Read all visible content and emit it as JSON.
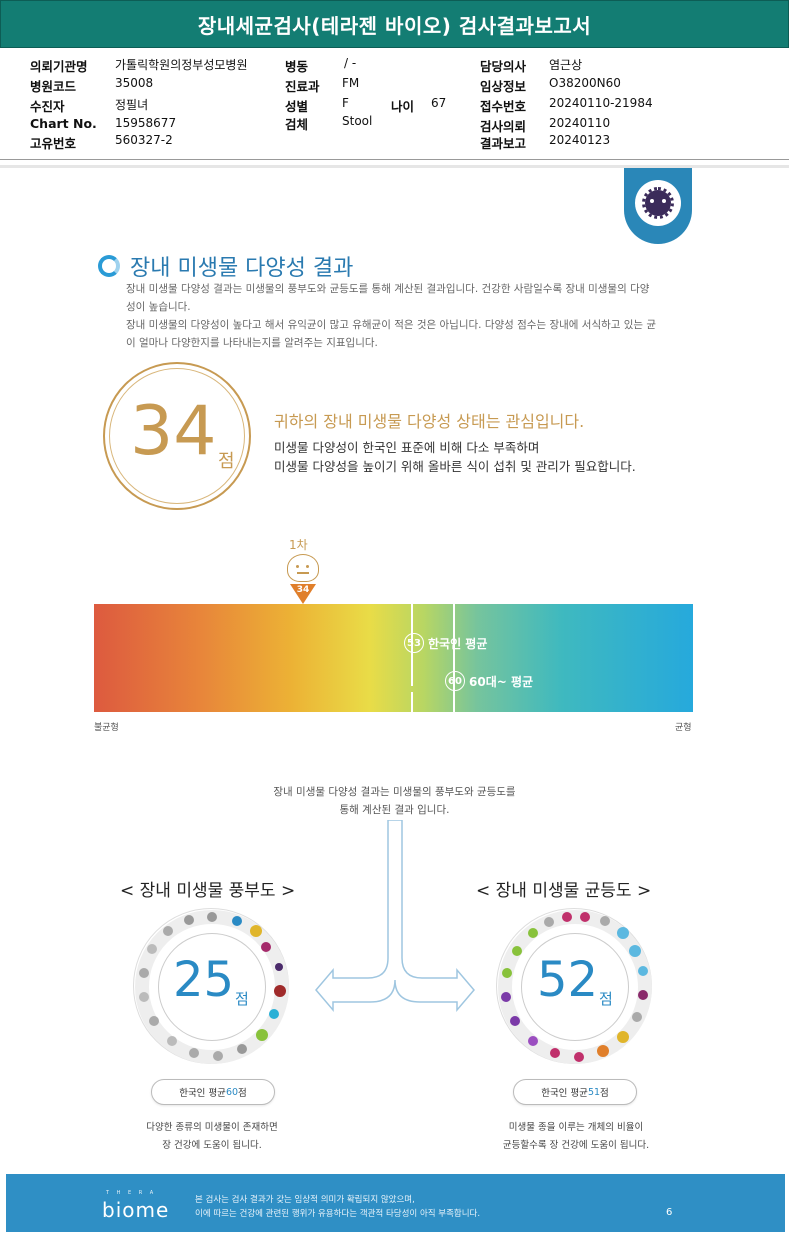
{
  "report_title": "장내세균검사(테라젠 바이오) 검사결과보고서",
  "info": {
    "col1": [
      {
        "label": "의뢰기관명",
        "value": "가톨릭학원의정부성모병원"
      },
      {
        "label": "병원코드",
        "value": "35008"
      },
      {
        "label": "수진자",
        "value": "정필녀"
      },
      {
        "label": "Chart No.",
        "value": "15958677"
      },
      {
        "label": "고유번호",
        "value": "560327-2"
      }
    ],
    "col2": [
      {
        "label": "병동",
        "value": "/ -"
      },
      {
        "label": "진료과",
        "value": "FM"
      },
      {
        "label": "성별",
        "value": "F"
      },
      {
        "label": "검체",
        "value": "Stool"
      }
    ],
    "age_label": "나이",
    "age_value": "67",
    "col3": [
      {
        "label": "담당의사",
        "value": "염근상"
      },
      {
        "label": "임상정보",
        "value": "O38200N60"
      },
      {
        "label": "접수번호",
        "value": "20240110-21984"
      },
      {
        "label": "검사의뢰",
        "value": "20240110"
      },
      {
        "label": "결과보고",
        "value": "20240123"
      }
    ]
  },
  "section": {
    "title": "장내 미생물 다양성 결과",
    "desc_lines": [
      "장내 미생물 다양성 결과는 미생물의 풍부도와 균등도를 통해 계산된 결과입니다. 건강한 사람일수록 장내 미생물의 다양",
      "성이 높습니다.",
      "장내 미생물의 다양성이 높다고 해서 유익균이 많고 유해균이 적은 것은 아닙니다. 다양성 점수는 장내에 서식하고 있는 균",
      "이 얼마나 다양한지를 나타내는지를 알려주는 지표입니다."
    ]
  },
  "score": {
    "value": "34",
    "unit": "점",
    "status": "귀하의 장내 미생물 다양성 상태는 관심입니다.",
    "desc_lines": [
      "미생물 다양성이 한국인 표준에 비해 다소 부족하며",
      "미생물 다양성을 높이기 위해 올바른 식이 섭취 및 관리가 필요합니다."
    ]
  },
  "scale": {
    "marker_label": "1차",
    "marker_value": "34",
    "marker_fraction": 0.34,
    "avg_korean_value": "53",
    "avg_korean_label": "한국인 평균",
    "avg_60s_value": "60",
    "avg_60s_label": "60대~ 평균",
    "left_label": "불균형",
    "right_label": "균형"
  },
  "flow_text": [
    "장내 미생물 다양성 결과는 미생물의 풍부도와 균등도를",
    "통해 계산된 결과 입니다."
  ],
  "richness": {
    "title": "< 장내 미생물 풍부도 >",
    "value": "25",
    "unit": "점",
    "avg_prefix": "한국인 평균 ",
    "avg_value": "60",
    "avg_suffix": "점",
    "caption": [
      "다양한 종류의 미생물이 존재하면",
      "장 건강에 도움이 됩니다."
    ]
  },
  "evenness": {
    "title": "< 장내 미생물 균등도 >",
    "value": "52",
    "unit": "점",
    "avg_prefix": "한국인 평균 ",
    "avg_value": "51",
    "avg_suffix": "점",
    "caption": [
      "미생물 종을 이루는 개체의 비율이",
      "균등할수록 장 건강에 도움이 됩니다."
    ]
  },
  "footer": {
    "logo_small": "T H E R A",
    "logo": "biome",
    "text_lines": [
      "본 검사는 검사 결과가 갖는 임상적 의미가 확립되지 않았으며,",
      "이에 따르는 건강에 관련된 행위가 유용하다는 객관적 타당성이 아직 부족합니다."
    ],
    "page": "6"
  },
  "colors": {
    "header": "#137d73",
    "accent_gold": "#c79a52",
    "accent_blue": "#2a8ac4",
    "footer": "#2f8fc5"
  }
}
